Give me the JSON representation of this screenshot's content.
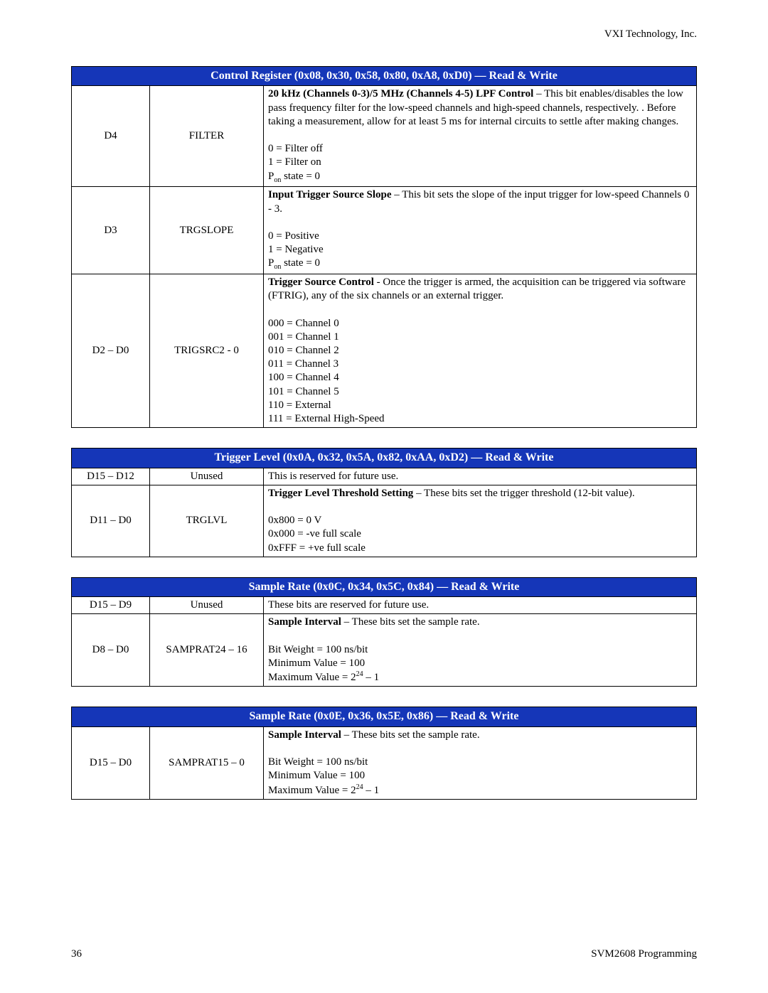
{
  "header": {
    "company": "VXI Technology, Inc."
  },
  "footer": {
    "page_num": "36",
    "doc_title": "SVM2608 Programming"
  },
  "tables": [
    {
      "header": "Control Register (0x08, 0x30, 0x58, 0x80, 0xA8, 0xD0) — Read & Write",
      "rows": [
        {
          "bits": "D4",
          "name": "FILTER",
          "desc_html": "<span class='bold'>20 kHz (Channels 0-3)/5 MHz (Channels 4-5) LPF Control</span> – This bit enables/disables the low pass frequency filter for the low-speed channels and high-speed channels, respectively. . Before taking a measurement, allow for at least 5 ms for internal circuits to settle after making changes.<br><br>0 = Filter off<br>1 = Filter on<br>P<span class='sub'>on</span> state = 0"
        },
        {
          "bits": "D3",
          "name": "TRGSLOPE",
          "desc_html": "<span class='bold'>Input Trigger Source Slope</span> – This bit sets the slope of the input trigger for low-speed Channels 0 - 3.<br><br>0 = Positive<br>1 = Negative<br>P<span class='sub'>on</span> state = 0"
        },
        {
          "bits": "D2 – D0",
          "name": "TRIGSRC2 - 0",
          "desc_html": "<span class='bold'>Trigger Source Control</span> - Once the trigger is armed, the acquisition can be triggered via software (FTRIG), any of the six channels or an external trigger.<br><br>000 = Channel 0<br>001 = Channel 1<br>010 = Channel 2<br>011 = Channel 3<br>100 = Channel 4<br>101 = Channel 5<br>110 = External<br>111 = External High-Speed"
        }
      ]
    },
    {
      "header": "Trigger Level (0x0A, 0x32, 0x5A, 0x82, 0xAA, 0xD2) — Read & Write",
      "rows": [
        {
          "bits": "D15 – D12",
          "name": "Unused",
          "desc_html": "This is reserved for future use."
        },
        {
          "bits": "D11 – D0",
          "name": "TRGLVL",
          "desc_html": "<span class='bold'>Trigger Level Threshold Setting</span> – These bits set the trigger threshold (12-bit value).<br><br>0x800 = 0 V<br>0x000 = -ve full scale<br>0xFFF = +ve full scale"
        }
      ]
    },
    {
      "header": "Sample Rate (0x0C, 0x34, 0x5C, 0x84) — Read & Write",
      "rows": [
        {
          "bits": "D15 – D9",
          "name": "Unused",
          "desc_html": "These bits are reserved for future use."
        },
        {
          "bits": "D8 – D0",
          "name": "SAMPRAT24 – 16",
          "desc_html": "<span class='bold'>Sample Interval</span> – These bits set the sample rate.<br><br>Bit Weight = 100 ns/bit<br>Minimum Value = 100<br>Maximum Value = 2<span class='sup'>24</span> – 1"
        }
      ]
    },
    {
      "header": "Sample Rate (0x0E, 0x36, 0x5E, 0x86) — Read & Write",
      "rows": [
        {
          "bits": "D15 – D0",
          "name": "SAMPRAT15 – 0",
          "desc_html": "<span class='bold'>Sample Interval</span> – These bits set the sample rate.<br><br>Bit Weight = 100 ns/bit<br>Minimum Value = 100<br>Maximum Value = 2<span class='sup'>24</span> – 1"
        }
      ]
    }
  ]
}
